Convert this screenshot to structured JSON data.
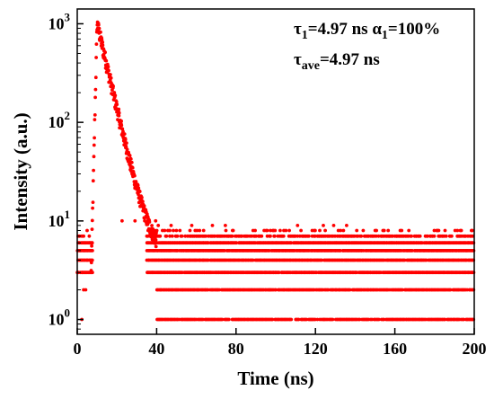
{
  "chart_data": {
    "type": "scatter",
    "title": "",
    "xlabel": "Time (ns)",
    "ylabel": "Intensity (a.u.)",
    "xlim": [
      0,
      200
    ],
    "ylim_log10": [
      -0.15,
      3.15
    ],
    "y_scale": "log",
    "x_ticks": [
      0,
      40,
      80,
      120,
      160,
      200
    ],
    "x_tick_labels": [
      "0",
      "40",
      "80",
      "120",
      "160",
      "200"
    ],
    "y_ticks": [
      1,
      10,
      100,
      1000
    ],
    "y_tick_labels": [
      {
        "base": "10",
        "exp": "0"
      },
      {
        "base": "10",
        "exp": "1"
      },
      {
        "base": "10",
        "exp": "2"
      },
      {
        "base": "10",
        "exp": "3"
      }
    ],
    "grid": false,
    "legend": "none",
    "marker_color": "#ff0000",
    "annotations": {
      "line1": {
        "tau_sym": "τ",
        "tau_sub": "1",
        "tau_val": "=4.97 ns ",
        "alpha_sym": "α",
        "alpha_sub": "1",
        "alpha_val": "=100%"
      },
      "line2": {
        "tau_sym": "τ",
        "tau_sub": "ave",
        "tau_val": "=4.97 ns"
      }
    },
    "decay": {
      "peak_time": 10,
      "peak_value": 1000,
      "rise_start": 7,
      "tau": 4.97,
      "baseline_levels": [
        1,
        2,
        3,
        4,
        5,
        6,
        7,
        8
      ]
    }
  }
}
